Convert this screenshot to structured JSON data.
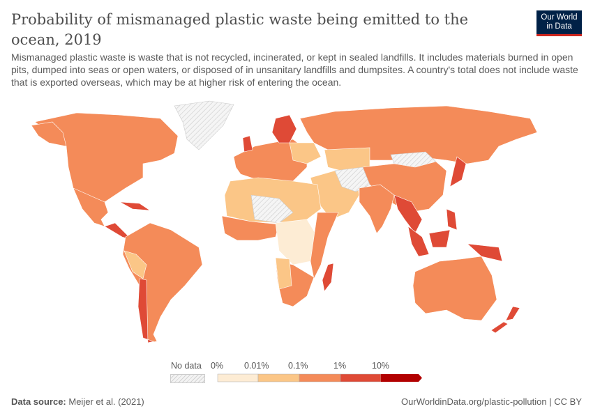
{
  "header": {
    "title": "Probability of mismanaged plastic waste being emitted to the ocean, 2019",
    "subtitle": "Mismanaged plastic waste is waste that is not recycled, incinerated, or kept in sealed landfills. It includes materials burned in open pits, dumped into seas or open waters, or disposed of in unsanitary landfills and dumpsites. A country's total does not include waste that is exported overseas, which may be at higher risk of entering the ocean.",
    "logo": [
      "Our World",
      "in Data"
    ]
  },
  "legend": {
    "no_data": "No data",
    "ticks": [
      "0%",
      "0.01%",
      "0.1%",
      "1%",
      "10%"
    ],
    "bins": [
      {
        "range": "0%–0.01%",
        "color": "#fdecd4"
      },
      {
        "range": "0.01%–0.1%",
        "color": "#fbc687"
      },
      {
        "range": "0.1%–1%",
        "color": "#f48b59"
      },
      {
        "range": "1%–10%",
        "color": "#df4a36"
      },
      {
        "range": ">10%",
        "color": "#b20000"
      }
    ]
  },
  "footer": {
    "source_label": "Data source:",
    "source": "Meijer et al. (2021)",
    "link": "OurWorldinData.org/plastic-pollution",
    "license": "CC BY",
    "separator": "|"
  }
}
